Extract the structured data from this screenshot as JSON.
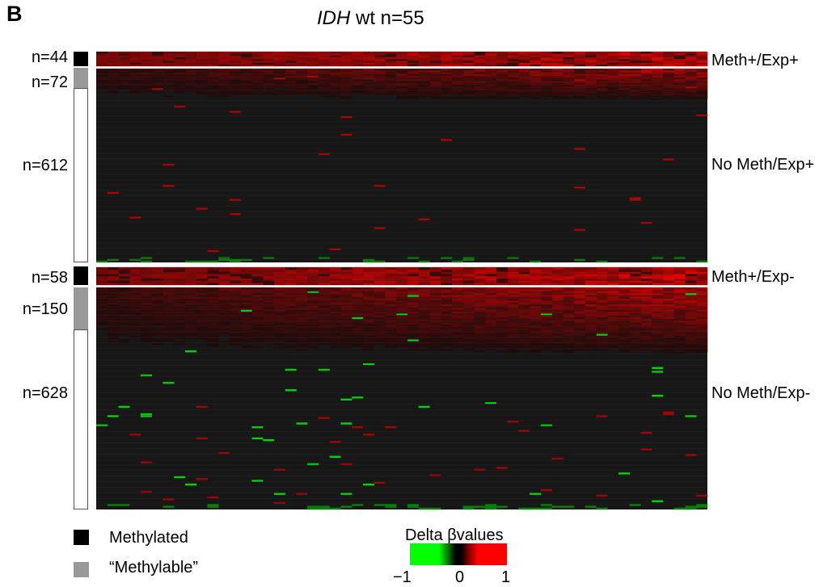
{
  "panel_label": "B",
  "title": {
    "gene": "IDH",
    "rest": " wt n=55"
  },
  "chart_data": {
    "type": "heatmap",
    "title": "IDH wt n=55",
    "columns": 55,
    "groups": [
      {
        "id": "meth-exp-plus",
        "label": "Meth+/Exp+",
        "bands": [
          {
            "count": "n=44",
            "rows": 44,
            "status": "methylated"
          }
        ],
        "intensity": "high"
      },
      {
        "id": "nometh-exp-plus",
        "label": "No Meth/Exp+",
        "bands": [
          {
            "count": "n=72",
            "rows": 72,
            "status": "methylable"
          },
          {
            "count": "n=612",
            "rows": 612,
            "status": "unmethylated"
          }
        ],
        "intensity": "low"
      },
      {
        "id": "meth-exp-minus",
        "label": "Meth+/Exp-",
        "bands": [
          {
            "count": "n=58",
            "rows": 58,
            "status": "methylated"
          }
        ],
        "intensity": "high"
      },
      {
        "id": "nometh-exp-minus",
        "label": "No Meth/Exp-",
        "bands": [
          {
            "count": "n=150",
            "rows": 150,
            "status": "methylable"
          },
          {
            "count": "n=628",
            "rows": 628,
            "status": "unmethylated"
          }
        ],
        "intensity": "medium"
      }
    ],
    "colorbar": {
      "title": "Delta βvalues",
      "min": -1,
      "max": 1,
      "ticks": [
        "−1",
        "0",
        "1"
      ],
      "colors": [
        "#00ff00",
        "#000000",
        "#ff0000"
      ]
    },
    "legend": [
      {
        "label": "Methylated",
        "color": "#000000"
      },
      {
        "label": "“Methylable”",
        "color": "#999999"
      }
    ]
  },
  "colors": {
    "background": "#ffffff",
    "methylated": "#000000",
    "methylable": "#999999",
    "unmethylated": "#ffffff",
    "heat_low": "#00ff00",
    "heat_mid": "#000000",
    "heat_high": "#ff0000"
  }
}
